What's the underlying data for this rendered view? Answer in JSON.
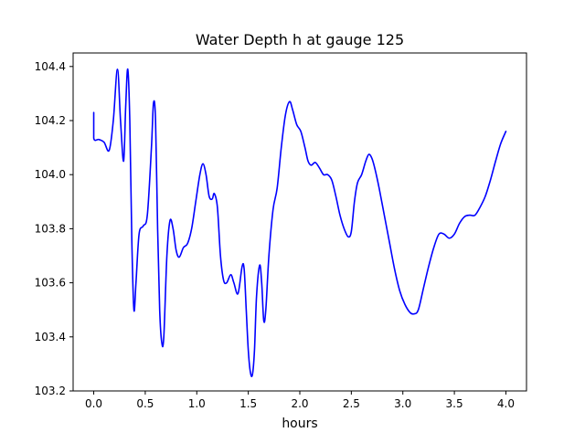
{
  "chart_data": {
    "type": "line",
    "title": "Water Depth h at gauge 125",
    "xlabel": "hours",
    "ylabel": "",
    "xlim": [
      -0.2,
      4.2
    ],
    "ylim": [
      103.2,
      104.45
    ],
    "xticks": [
      0.0,
      0.5,
      1.0,
      1.5,
      2.0,
      2.5,
      3.0,
      3.5,
      4.0
    ],
    "xtick_labels": [
      "0.0",
      "0.5",
      "1.0",
      "1.5",
      "2.0",
      "2.5",
      "3.0",
      "3.5",
      "4.0"
    ],
    "yticks": [
      103.2,
      103.4,
      103.6,
      103.8,
      104.0,
      104.2,
      104.4
    ],
    "ytick_labels": [
      "103.2",
      "103.4",
      "103.6",
      "103.8",
      "104.0",
      "104.2",
      "104.4"
    ],
    "grid": false,
    "legend": "none",
    "series": [
      {
        "color": "#0000ff",
        "points": [
          [
            0.0,
            104.23
          ],
          [
            0.0,
            104.135
          ],
          [
            0.05,
            104.13
          ],
          [
            0.1,
            104.12
          ],
          [
            0.15,
            104.09
          ],
          [
            0.19,
            104.2
          ],
          [
            0.23,
            104.39
          ],
          [
            0.26,
            104.2
          ],
          [
            0.29,
            104.05
          ],
          [
            0.31,
            104.25
          ],
          [
            0.33,
            104.39
          ],
          [
            0.35,
            104.2
          ],
          [
            0.37,
            103.75
          ],
          [
            0.39,
            103.5
          ],
          [
            0.41,
            103.6
          ],
          [
            0.44,
            103.78
          ],
          [
            0.48,
            103.81
          ],
          [
            0.52,
            103.85
          ],
          [
            0.56,
            104.1
          ],
          [
            0.58,
            104.265
          ],
          [
            0.6,
            104.2
          ],
          [
            0.62,
            103.8
          ],
          [
            0.64,
            103.5
          ],
          [
            0.66,
            103.38
          ],
          [
            0.68,
            103.4
          ],
          [
            0.71,
            103.7
          ],
          [
            0.74,
            103.83
          ],
          [
            0.77,
            103.8
          ],
          [
            0.8,
            103.72
          ],
          [
            0.83,
            103.695
          ],
          [
            0.87,
            103.73
          ],
          [
            0.91,
            103.745
          ],
          [
            0.95,
            103.8
          ],
          [
            0.99,
            103.9
          ],
          [
            1.03,
            104.0
          ],
          [
            1.06,
            104.04
          ],
          [
            1.09,
            104.0
          ],
          [
            1.12,
            103.92
          ],
          [
            1.15,
            103.91
          ],
          [
            1.17,
            103.93
          ],
          [
            1.2,
            103.88
          ],
          [
            1.23,
            103.7
          ],
          [
            1.26,
            103.61
          ],
          [
            1.29,
            103.6
          ],
          [
            1.33,
            103.63
          ],
          [
            1.36,
            103.6
          ],
          [
            1.4,
            103.56
          ],
          [
            1.44,
            103.66
          ],
          [
            1.46,
            103.65
          ],
          [
            1.48,
            103.5
          ],
          [
            1.5,
            103.35
          ],
          [
            1.52,
            103.27
          ],
          [
            1.54,
            103.26
          ],
          [
            1.56,
            103.35
          ],
          [
            1.58,
            103.55
          ],
          [
            1.61,
            103.665
          ],
          [
            1.63,
            103.6
          ],
          [
            1.65,
            103.46
          ],
          [
            1.67,
            103.5
          ],
          [
            1.7,
            103.7
          ],
          [
            1.74,
            103.87
          ],
          [
            1.78,
            103.95
          ],
          [
            1.82,
            104.1
          ],
          [
            1.86,
            104.22
          ],
          [
            1.9,
            104.27
          ],
          [
            1.93,
            104.24
          ],
          [
            1.97,
            104.185
          ],
          [
            2.01,
            104.16
          ],
          [
            2.05,
            104.1
          ],
          [
            2.08,
            104.05
          ],
          [
            2.11,
            104.035
          ],
          [
            2.15,
            104.045
          ],
          [
            2.19,
            104.025
          ],
          [
            2.23,
            104.0
          ],
          [
            2.27,
            104.0
          ],
          [
            2.31,
            103.98
          ],
          [
            2.35,
            103.92
          ],
          [
            2.39,
            103.85
          ],
          [
            2.43,
            103.8
          ],
          [
            2.47,
            103.77
          ],
          [
            2.5,
            103.79
          ],
          [
            2.53,
            103.9
          ],
          [
            2.56,
            103.97
          ],
          [
            2.6,
            104.0
          ],
          [
            2.64,
            104.05
          ],
          [
            2.67,
            104.075
          ],
          [
            2.7,
            104.06
          ],
          [
            2.73,
            104.02
          ],
          [
            2.77,
            103.95
          ],
          [
            2.82,
            103.85
          ],
          [
            2.87,
            103.75
          ],
          [
            2.92,
            103.65
          ],
          [
            2.97,
            103.57
          ],
          [
            3.02,
            103.52
          ],
          [
            3.07,
            103.49
          ],
          [
            3.11,
            103.485
          ],
          [
            3.15,
            103.5
          ],
          [
            3.2,
            103.58
          ],
          [
            3.25,
            103.66
          ],
          [
            3.3,
            103.73
          ],
          [
            3.35,
            103.78
          ],
          [
            3.4,
            103.78
          ],
          [
            3.45,
            103.765
          ],
          [
            3.5,
            103.78
          ],
          [
            3.55,
            103.82
          ],
          [
            3.6,
            103.845
          ],
          [
            3.65,
            103.85
          ],
          [
            3.7,
            103.85
          ],
          [
            3.75,
            103.88
          ],
          [
            3.8,
            103.92
          ],
          [
            3.85,
            103.98
          ],
          [
            3.9,
            104.05
          ],
          [
            3.95,
            104.115
          ],
          [
            4.0,
            104.16
          ]
        ]
      }
    ]
  }
}
